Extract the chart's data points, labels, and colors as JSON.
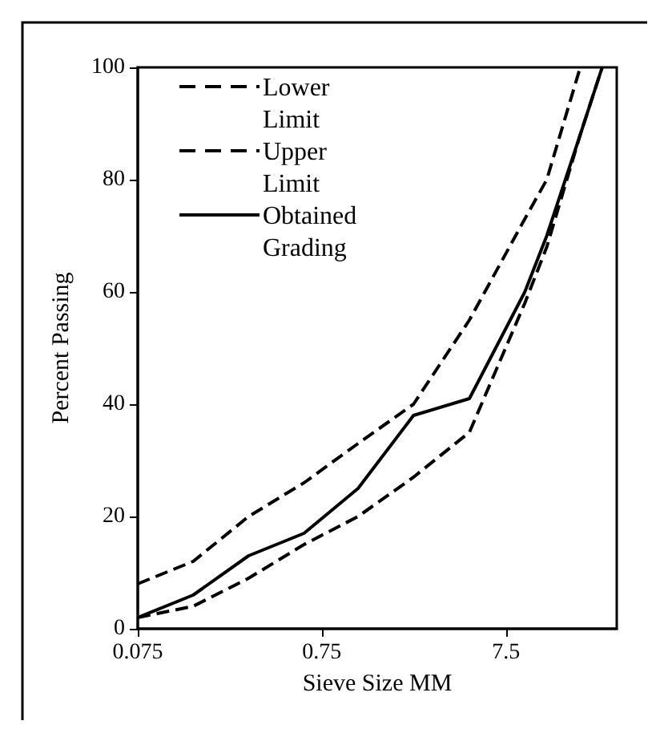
{
  "chart_data": {
    "type": "line",
    "xlabel": "Sieve Size MM",
    "ylabel": "Percent Passing",
    "log": "x",
    "x": [
      0.075,
      0.15,
      0.3,
      0.6,
      1.18,
      2.36,
      4.75,
      9.5,
      12.5,
      19,
      25
    ],
    "series": [
      {
        "name": "Lower Limit",
        "color": "#000000",
        "line_style": "dashed",
        "values": [
          2,
          4,
          9,
          15,
          20,
          27,
          35,
          58,
          68,
          88,
          100
        ]
      },
      {
        "name": "Upper Limit",
        "color": "#000000",
        "line_style": "dashed",
        "values": [
          8,
          12,
          20,
          26,
          33,
          40,
          55,
          73,
          80,
          100,
          null
        ]
      },
      {
        "name": "Obtained Grading",
        "color": "#000000",
        "line_style": "solid",
        "values": [
          2,
          6,
          13,
          17,
          25,
          38,
          41,
          60,
          70,
          88,
          100
        ]
      }
    ],
    "xlim": [
      0.075,
      30
    ],
    "xticks": [
      0.075,
      0.75,
      7.5
    ],
    "ylim": [
      0,
      100
    ],
    "yticks": [
      0,
      20,
      40,
      60,
      80,
      100
    ],
    "grid": false,
    "legend": "top left",
    "marker": "none"
  }
}
